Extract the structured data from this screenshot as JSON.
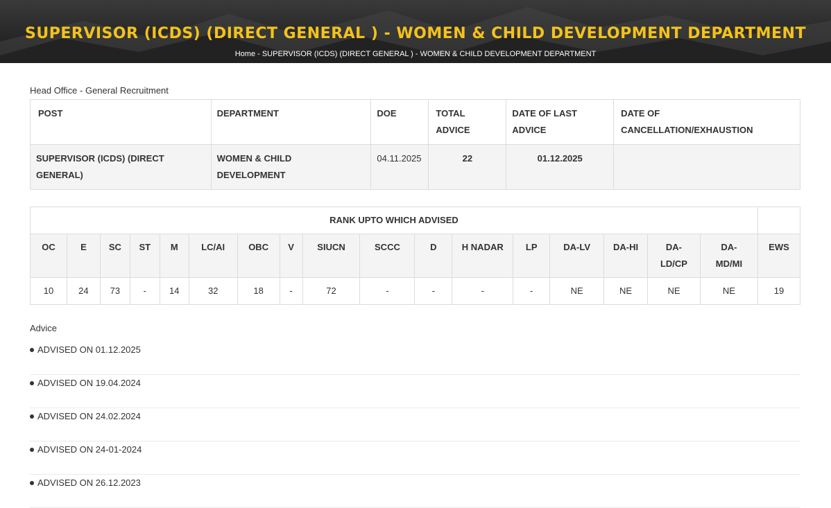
{
  "header": {
    "title": "SUPERVISOR (ICDS) (DIRECT GENERAL ) - WOMEN & CHILD DEVELOPMENT DEPARTMENT",
    "breadcrumb_home": "Home",
    "breadcrumb_rest": " - SUPERVISOR (ICDS) (DIRECT GENERAL ) - WOMEN & CHILD DEVELOPMENT DEPARTMENT"
  },
  "office_label": "Head Office - General Recruitment",
  "post_table": {
    "headers": [
      "POST",
      "DEPARTMENT",
      "DOE",
      "TOTAL ADVICE",
      "DATE OF LAST ADVICE",
      "DATE OF CANCELLATION/EXHAUSTION"
    ],
    "row": {
      "post": "SUPERVISOR (ICDS) (DIRECT GENERAL)",
      "department": "WOMEN & CHILD DEVELOPMENT",
      "doe": "04.11.2025",
      "total_advice": "22",
      "date_last_advice": "01.12.2025",
      "date_cancellation": ""
    }
  },
  "rank_table": {
    "title": "RANK UPTO WHICH ADVISED",
    "codes": [
      "OC",
      "E",
      "SC",
      "ST",
      "M",
      "LC/AI",
      "OBC",
      "V",
      "SIUCN",
      "SCCC",
      "D",
      "H NADAR",
      "LP",
      "DA-LV",
      "DA-HI",
      "DA-LD/CP",
      "DA-MD/MI",
      "EWS"
    ],
    "values": [
      "10",
      "24",
      "73",
      "-",
      "14",
      "32",
      "18",
      "-",
      "72",
      "-",
      "-",
      "-",
      "-",
      "NE",
      "NE",
      "NE",
      "NE",
      "19"
    ]
  },
  "advice": {
    "label": "Advice",
    "items": [
      "ADVISED ON 01.12.2025",
      "ADVISED ON 19.04.2024",
      "ADVISED ON 24.02.2024",
      "ADVISED ON 24-01-2024",
      "ADVISED ON 26.12.2023"
    ]
  },
  "colors": {
    "title": "#f4c21b",
    "banner_bg": "#2b2b2b"
  }
}
